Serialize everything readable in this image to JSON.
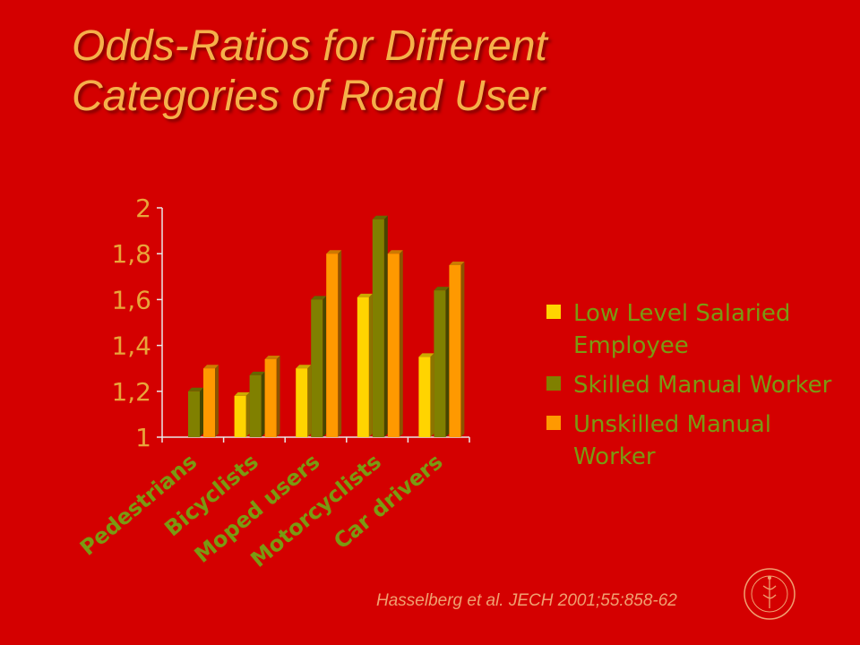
{
  "slide": {
    "title_line1": "Odds-Ratios for Different",
    "title_line2": "Categories of Road User",
    "citation": "Hasselberg et al. JECH 2001;55:858-62"
  },
  "colors": {
    "background": "#d40000",
    "title": "#f5b04a",
    "axis": "#e8e8e8",
    "tick_label": "#e8a53a",
    "category_label": "#7a9a12"
  },
  "chart_data": {
    "type": "bar",
    "title": "",
    "xlabel": "",
    "ylabel": "",
    "ylim": [
      1,
      2
    ],
    "yticks": [
      1,
      1.2,
      1.4,
      1.6,
      1.8,
      2
    ],
    "ytick_labels": [
      "1",
      "1,2",
      "1,4",
      "1,6",
      "1,8",
      "2"
    ],
    "grid": false,
    "legend_position": "right",
    "categories": [
      "Pedestrians",
      "Bicyclists",
      "Moped users",
      "Motorcyclists",
      "Car drivers"
    ],
    "series": [
      {
        "name": "Low Level Salaried Employee",
        "color": "#ffd400",
        "values": [
          1.0,
          1.18,
          1.3,
          1.61,
          1.35
        ]
      },
      {
        "name": "Skilled Manual Worker",
        "color": "#808000",
        "values": [
          1.2,
          1.27,
          1.6,
          1.95,
          1.64
        ]
      },
      {
        "name": "Unskilled Manual Worker",
        "color": "#ff9900",
        "values": [
          1.3,
          1.34,
          1.8,
          1.8,
          1.75
        ]
      }
    ]
  },
  "icons": {
    "seal": "university-seal-icon"
  }
}
